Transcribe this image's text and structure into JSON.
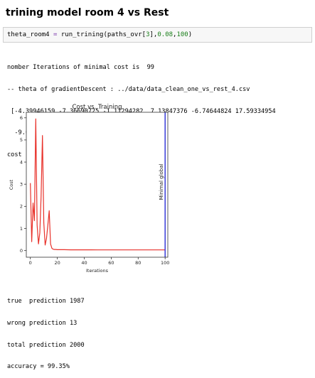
{
  "heading": "trining model room 4 vs Rest",
  "code": {
    "var": "theta_room4",
    "eq": " = ",
    "fn": "run_trining",
    "args_pre": "(paths_ovr[",
    "idx": "3",
    "args_mid": "],",
    "lr": "0.08",
    "comma": ",",
    "iters": "100",
    "close": ")"
  },
  "output_before": [
    "nomber Iterations of minimal cost is  99",
    "-- theta of gradientDescent : ../data/data_clean_one_vs_rest_4.csv",
    " [-4.39946159 -7.36690725 -1.11294282  7.13847376 -6.74644824 17.59334954",
    "  -9.02362267 -7.64416932]",
    "cost  of gradientDescent : [[0.03052463]]"
  ],
  "output_after": [
    "true  prediction 1987",
    "wrong prediction 13",
    "total prediction 2000",
    "accuracy = 99.35%"
  ],
  "chart_data": {
    "type": "line",
    "title": "Cost vs. Training",
    "xlabel": "Iterations",
    "ylabel": "Cost",
    "xlim": [
      -3,
      102
    ],
    "ylim": [
      -0.3,
      6.25
    ],
    "xticks": [
      0,
      20,
      40,
      60,
      80,
      100
    ],
    "yticks": [
      0,
      1,
      2,
      3,
      4,
      5,
      6
    ],
    "grid": false,
    "series": [
      {
        "color": "#e8312a",
        "x": [
          0,
          1,
          2,
          3,
          4,
          5,
          6,
          7,
          8,
          9,
          10,
          11,
          12,
          13,
          14,
          15,
          16,
          17,
          18,
          19,
          20,
          22,
          25,
          30,
          35,
          40,
          45,
          50,
          55,
          60,
          65,
          70,
          75,
          80,
          85,
          90,
          95,
          99,
          100
        ],
        "y": [
          3.05,
          0.4,
          2.15,
          1.35,
          5.95,
          1.15,
          0.3,
          0.8,
          2.45,
          5.2,
          1.25,
          0.25,
          0.55,
          1.15,
          1.8,
          0.3,
          0.1,
          0.06,
          0.05,
          0.05,
          0.04,
          0.04,
          0.04,
          0.035,
          0.035,
          0.033,
          0.033,
          0.032,
          0.032,
          0.032,
          0.031,
          0.031,
          0.031,
          0.031,
          0.031,
          0.031,
          0.031,
          0.0305,
          0.0305
        ]
      }
    ],
    "vline": {
      "x": 100,
      "color": "#2a2fd6",
      "label": "Minimal global"
    }
  }
}
